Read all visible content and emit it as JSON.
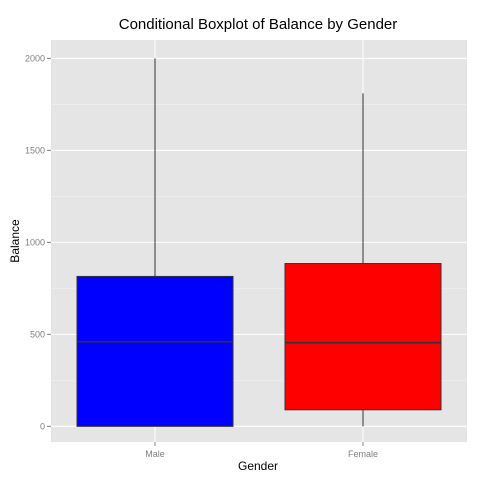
{
  "chart_data": {
    "type": "boxplot",
    "title": "Conditional Boxplot of Balance by Gender",
    "xlabel": "Gender",
    "ylabel": "Balance",
    "ylim": [
      -85,
      2100
    ],
    "yticks": [
      0,
      500,
      1000,
      1500,
      2000
    ],
    "grid": true,
    "categories": [
      "Male",
      "Female"
    ],
    "boxes": [
      {
        "category": "Male",
        "whisker_low": 0,
        "q1": 0,
        "median": 460,
        "q3": 815,
        "whisker_high": 2000,
        "color": "#0000ff"
      },
      {
        "category": "Female",
        "whisker_low": 0,
        "q1": 90,
        "median": 455,
        "q3": 885,
        "whisker_high": 1810,
        "color": "#ff0000"
      }
    ]
  },
  "colors": {
    "panel_background": "#e5e5e5",
    "grid_major": "#ffffff",
    "grid_minor": "#f2f2f2",
    "outline": "#333333"
  }
}
